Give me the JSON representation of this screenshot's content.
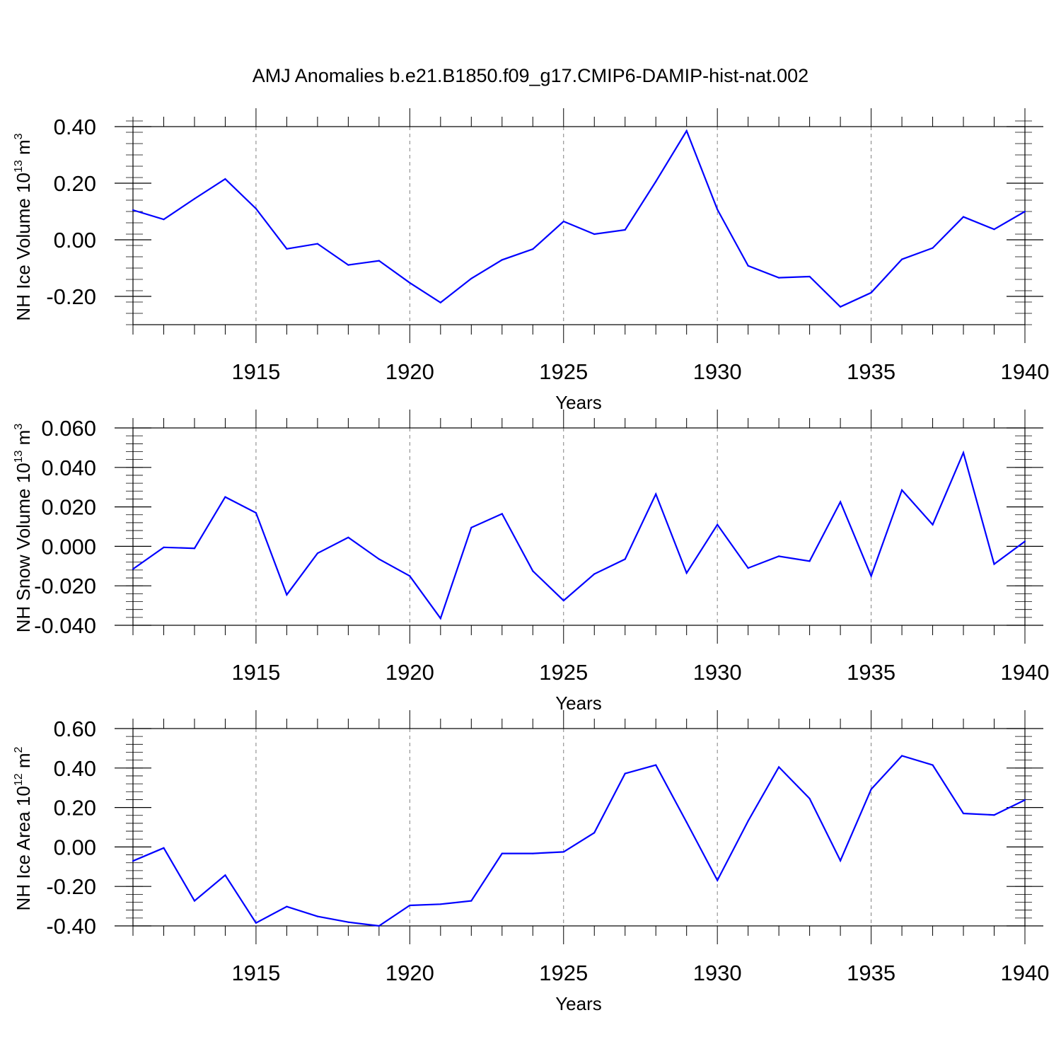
{
  "figure": {
    "title": "AMJ Anomalies b.e21.B1850.f09_g17.CMIP6-DAMIP-hist-nat.002"
  },
  "colors": {
    "series_line": "#0000ff",
    "axis": "#000000",
    "grid": "#808080",
    "background": "#ffffff"
  },
  "chart_data": [
    {
      "type": "line",
      "title": "AMJ Anomalies b.e21.B1850.f09_g17.CMIP6-DAMIP-hist-nat.002",
      "xlabel": "Years",
      "ylabel": {
        "text": "NH Ice Volume 10",
        "sup": "13",
        "unit": " m",
        "unit_sup": "3"
      },
      "xlim": [
        1911,
        1940
      ],
      "ylim": [
        -0.3,
        0.4
      ],
      "x_ticks": [
        1915,
        1920,
        1925,
        1930,
        1935,
        1940
      ],
      "y_ticks": [
        -0.2,
        0.0,
        0.2,
        0.4
      ],
      "y_tick_labels": [
        "-0.20",
        "0.00",
        "0.20",
        "0.40"
      ],
      "y_minor_step": 0.04,
      "grid": "dashed vertical lines at major x ticks",
      "x": [
        1911,
        1912,
        1913,
        1914,
        1915,
        1916,
        1917,
        1918,
        1919,
        1920,
        1921,
        1922,
        1923,
        1924,
        1925,
        1926,
        1927,
        1928,
        1929,
        1930,
        1931,
        1932,
        1933,
        1934,
        1935,
        1936,
        1937,
        1938,
        1939,
        1940
      ],
      "values": [
        0.105,
        0.072,
        0.145,
        0.215,
        0.11,
        -0.032,
        -0.014,
        -0.089,
        -0.074,
        -0.152,
        -0.222,
        -0.137,
        -0.071,
        -0.033,
        0.065,
        0.02,
        0.035,
        0.206,
        0.385,
        0.107,
        -0.092,
        -0.134,
        -0.13,
        -0.237,
        -0.187,
        -0.069,
        -0.029,
        0.081,
        0.037,
        0.1
      ]
    },
    {
      "type": "line",
      "xlabel": "Years",
      "ylabel": {
        "text": "NH Snow Volume 10",
        "sup": "13",
        "unit": " m",
        "unit_sup": "3"
      },
      "xlim": [
        1911,
        1940
      ],
      "ylim": [
        -0.04,
        0.06
      ],
      "x_ticks": [
        1915,
        1920,
        1925,
        1930,
        1935,
        1940
      ],
      "y_ticks": [
        -0.04,
        -0.02,
        0.0,
        0.02,
        0.04,
        0.06
      ],
      "y_tick_labels": [
        "-0.040",
        "-0.020",
        "0.000",
        "0.020",
        "0.040",
        "0.060"
      ],
      "y_minor_step": 0.004,
      "grid": "dashed vertical lines at major x ticks",
      "x": [
        1911,
        1912,
        1913,
        1914,
        1915,
        1916,
        1917,
        1918,
        1919,
        1920,
        1921,
        1922,
        1923,
        1924,
        1925,
        1926,
        1927,
        1928,
        1929,
        1930,
        1931,
        1932,
        1933,
        1934,
        1935,
        1936,
        1937,
        1938,
        1939,
        1940
      ],
      "values": [
        -0.0115,
        -0.0005,
        -0.001,
        0.025,
        0.017,
        -0.0245,
        -0.0035,
        0.0045,
        -0.0065,
        -0.015,
        -0.0365,
        0.0095,
        0.0165,
        -0.0125,
        -0.0275,
        -0.014,
        -0.0065,
        0.0265,
        -0.0135,
        0.011,
        -0.011,
        -0.005,
        -0.0075,
        0.0225,
        -0.015,
        0.0285,
        0.011,
        0.0475,
        -0.009,
        0.0025
      ]
    },
    {
      "type": "line",
      "xlabel": "Years",
      "ylabel": {
        "text": "NH Ice Area 10",
        "sup": "12",
        "unit": " m",
        "unit_sup": "2"
      },
      "xlim": [
        1911,
        1940
      ],
      "ylim": [
        -0.4,
        0.6
      ],
      "x_ticks": [
        1915,
        1920,
        1925,
        1930,
        1935,
        1940
      ],
      "y_ticks": [
        -0.4,
        -0.2,
        0.0,
        0.2,
        0.4,
        0.6
      ],
      "y_tick_labels": [
        "-0.40",
        "-0.20",
        "0.00",
        "0.20",
        "0.40",
        "0.60"
      ],
      "y_minor_step": 0.04,
      "grid": "dashed vertical lines at major x ticks",
      "x": [
        1911,
        1912,
        1913,
        1914,
        1915,
        1916,
        1917,
        1918,
        1919,
        1920,
        1921,
        1922,
        1923,
        1924,
        1925,
        1926,
        1927,
        1928,
        1929,
        1930,
        1931,
        1932,
        1933,
        1934,
        1935,
        1936,
        1937,
        1938,
        1939,
        1940
      ],
      "values": [
        -0.071,
        -0.005,
        -0.273,
        -0.143,
        -0.385,
        -0.302,
        -0.352,
        -0.381,
        -0.4,
        -0.296,
        -0.29,
        -0.273,
        -0.033,
        -0.033,
        -0.025,
        0.072,
        0.372,
        0.415,
        0.125,
        -0.169,
        0.132,
        0.405,
        0.245,
        -0.069,
        0.292,
        0.462,
        0.415,
        0.17,
        0.162,
        0.238
      ]
    }
  ]
}
